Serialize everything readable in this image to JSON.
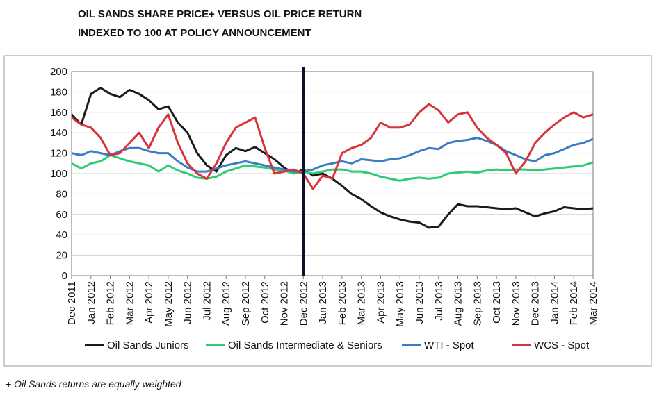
{
  "chart_data": {
    "type": "line",
    "title": "OIL SANDS SHARE PRICE+ VERSUS OIL PRICE RETURN",
    "subtitle": "INDEXED TO 100 AT POLICY ANNOUNCEMENT",
    "note": "+ Oil Sands returns are equally weighted",
    "categories": [
      "Dec 2011",
      null,
      "Jan 2012",
      null,
      "Feb 2012",
      null,
      "Mar 2012",
      null,
      "Apr 2012",
      null,
      "May 2012",
      null,
      "Jun 2012",
      null,
      "Jul 2012",
      null,
      "Aug 2012",
      null,
      "Sep 2012",
      null,
      "Oct 2012",
      null,
      "Nov 2012",
      null,
      "Dec 2012",
      null,
      "Jan 2013",
      null,
      "Feb 2013",
      null,
      "Mar 2013",
      null,
      "Apr 2013",
      null,
      "May 2013",
      null,
      "Jun 2013",
      null,
      "Jul 2013",
      null,
      "Aug 2013",
      null,
      "Sep 2013",
      null,
      "Oct 2013",
      null,
      "Nov 2013",
      null,
      "Dec 2013",
      null,
      "Jan 2014",
      null,
      "Feb 2014",
      null,
      "Mar 2014"
    ],
    "series": [
      {
        "name": "Oil Sands Juniors",
        "color": "#1a1a1a",
        "values": [
          158,
          148,
          178,
          184,
          178,
          175,
          182,
          178,
          172,
          163,
          166,
          150,
          140,
          120,
          108,
          102,
          118,
          125,
          122,
          126,
          120,
          114,
          106,
          100,
          104,
          98,
          100,
          95,
          88,
          80,
          75,
          68,
          62,
          58,
          55,
          53,
          52,
          47,
          48,
          60,
          70,
          68,
          68,
          67,
          66,
          65,
          66,
          62,
          58,
          61,
          63,
          67,
          66,
          65,
          66
        ]
      },
      {
        "name": "Oil Sands Intermediate & Seniors",
        "color": "#2ecc71",
        "values": [
          110,
          105,
          110,
          112,
          118,
          115,
          112,
          110,
          108,
          102,
          108,
          103,
          100,
          96,
          95,
          97,
          102,
          105,
          108,
          107,
          106,
          104,
          103,
          100,
          102,
          100,
          102,
          104,
          104,
          102,
          102,
          100,
          97,
          95,
          93,
          95,
          96,
          95,
          96,
          100,
          101,
          102,
          101,
          103,
          104,
          103,
          104,
          104,
          103,
          104,
          105,
          106,
          107,
          108,
          111
        ]
      },
      {
        "name": "WTI - Spot",
        "color": "#3a7cc6",
        "values": [
          120,
          118,
          122,
          120,
          118,
          122,
          125,
          125,
          122,
          120,
          120,
          112,
          106,
          102,
          102,
          105,
          108,
          110,
          112,
          110,
          108,
          106,
          104,
          102,
          102,
          104,
          108,
          110,
          112,
          110,
          114,
          113,
          112,
          114,
          115,
          118,
          122,
          125,
          124,
          130,
          132,
          133,
          135,
          132,
          128,
          122,
          118,
          114,
          112,
          118,
          120,
          124,
          128,
          130,
          134
        ]
      },
      {
        "name": "WCS - Spot",
        "color": "#d7333b",
        "values": [
          155,
          148,
          145,
          135,
          118,
          120,
          130,
          140,
          125,
          145,
          158,
          130,
          110,
          100,
          95,
          110,
          130,
          145,
          150,
          155,
          125,
          100,
          102,
          104,
          100,
          85,
          98,
          95,
          120,
          125,
          128,
          135,
          150,
          145,
          145,
          148,
          160,
          168,
          162,
          150,
          158,
          160,
          145,
          135,
          128,
          120,
          100,
          112,
          130,
          140,
          148,
          155,
          160,
          155,
          158
        ]
      }
    ],
    "ylim": [
      0,
      200
    ],
    "yticks": [
      0,
      20,
      40,
      60,
      80,
      100,
      120,
      140,
      160,
      180,
      200
    ],
    "grid": true
  }
}
